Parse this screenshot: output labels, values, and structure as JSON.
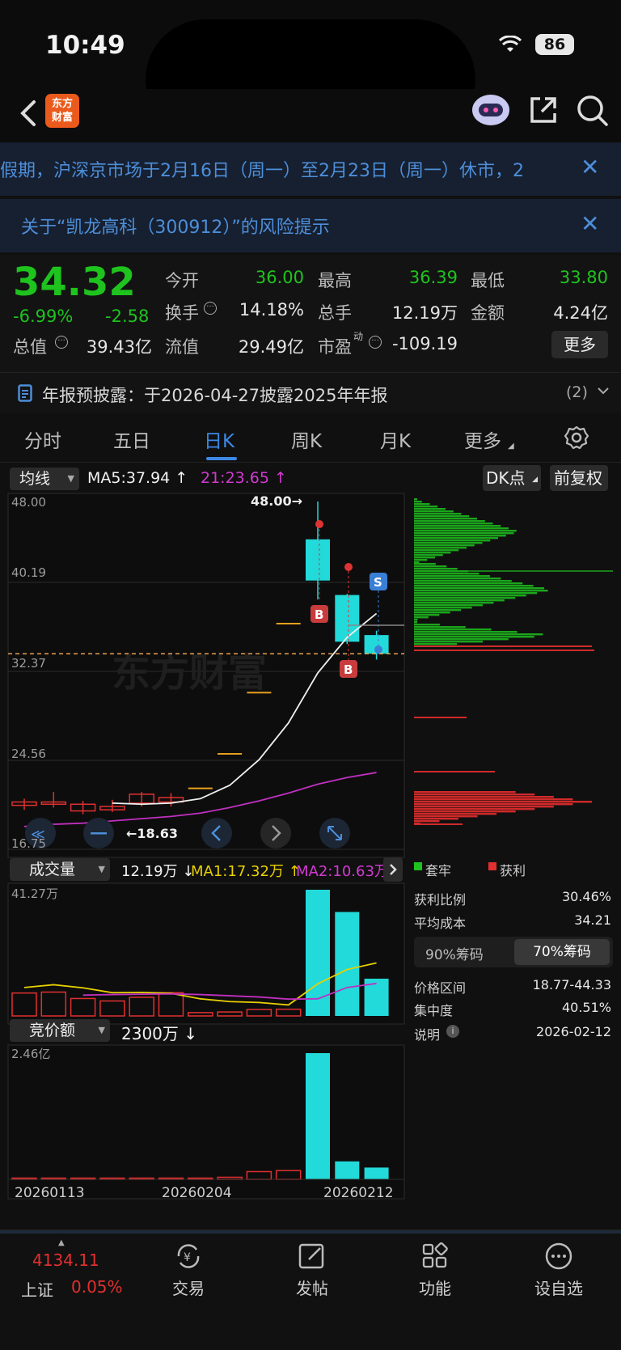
{
  "status_bar": {
    "time": "10:49",
    "battery": "86"
  },
  "header": {
    "back_icon": "chevron-left-icon",
    "logo_text": "东方\n财富"
  },
  "banners": [
    {
      "text": "假期，沪深京市场于2月16日（周一）至2月23日（周一）休市，2"
    },
    {
      "text": "关于“凯龙高科（300912）”的风险提示"
    }
  ],
  "quote": {
    "price": "34.32",
    "change_pct": "-6.99%",
    "change": "-2.58",
    "fields": {
      "open_label": "今开",
      "open": "36.00",
      "high_label": "最高",
      "high": "36.39",
      "low_label": "最低",
      "low": "33.80",
      "turnover_label": "换手",
      "turnover": "14.18%",
      "volume_label": "总手",
      "volume": "12.19万",
      "amount_label": "金额",
      "amount": "4.24亿",
      "mktcap_label": "总值",
      "mktcap": "39.43亿",
      "float_label": "流值",
      "float": "29.49亿",
      "pe_label": "市盈",
      "pe_sup": "动",
      "pe": "-109.19"
    },
    "more_label": "更多"
  },
  "report": {
    "text": "年报预披露：于2026-04-27披露2025年年报",
    "count": "(2)"
  },
  "tabs": [
    "分时",
    "五日",
    "日K",
    "周K",
    "月K",
    "更多"
  ],
  "chart_header": {
    "indicator": "均线",
    "ma5": "MA5:37.94 ↑",
    "ma21": "21:23.65 ↑",
    "dk": "DK点",
    "adjust": "前复权"
  },
  "price_axis": [
    "48.00",
    "40.19",
    "32.37",
    "24.56",
    "16.75"
  ],
  "annotations": {
    "high_marker": "48.00→",
    "low_marker": "←18.63",
    "watermark": "东方财富"
  },
  "volume_header": {
    "indicator": "成交量",
    "vol": "12.19万 ↓",
    "ma1": "MA1:17.32万 ↑",
    "ma2": "MA2:10.63万"
  },
  "volume_axis_max": "41.27万",
  "auction_header": {
    "indicator": "竞价额",
    "value": "2300万 ↓"
  },
  "auction_axis_max": "2.46亿",
  "dates": [
    "20260113",
    "20260204",
    "20260212"
  ],
  "chip_panel": {
    "legend_trapped": "套牢",
    "legend_profit": "获利",
    "rows": [
      {
        "label": "获利比例",
        "value": "30.46%"
      },
      {
        "label": "平均成本",
        "value": "34.21"
      }
    ],
    "toggle": [
      "90%筹码",
      "70%筹码"
    ],
    "rows2": [
      {
        "label": "价格区间",
        "value": "18.77-44.33"
      },
      {
        "label": "集中度",
        "value": "40.51%"
      },
      {
        "label": "说明",
        "value": "2026-02-12"
      }
    ]
  },
  "bottom_nav": {
    "index_value": "4134.11",
    "index_name": "上证",
    "index_change": "0.05%",
    "items": [
      "交易",
      "发帖",
      "功能",
      "设自选"
    ]
  },
  "chart_data": {
    "type": "candlestick",
    "ylim": [
      16.75,
      48.0
    ],
    "y_ticks": [
      48.0,
      40.19,
      32.37,
      24.56,
      16.75
    ],
    "x_ticks": [
      "20260113",
      "20260204",
      "20260212"
    ],
    "candles": [
      {
        "open": 20.7,
        "close": 21.0,
        "high": 21.3,
        "low": 20.3
      },
      {
        "open": 20.8,
        "close": 21.0,
        "high": 21.9,
        "low": 20.5
      },
      {
        "open": 20.2,
        "close": 20.8,
        "high": 21.1,
        "low": 19.9
      },
      {
        "open": 20.3,
        "close": 20.6,
        "high": 21.2,
        "low": 20.1
      },
      {
        "open": 20.9,
        "close": 21.7,
        "high": 21.9,
        "low": 20.6
      },
      {
        "open": 21.0,
        "close": 21.4,
        "high": 21.8,
        "low": 20.6
      },
      {
        "open": 22.3,
        "close": 22.3,
        "high": 22.3,
        "low": 22.3
      },
      {
        "open": 25.4,
        "close": 25.4,
        "high": 25.4,
        "low": 25.4
      },
      {
        "open": 30.9,
        "close": 30.9,
        "high": 30.9,
        "low": 30.9
      },
      {
        "open": 37.1,
        "close": 37.1,
        "high": 37.1,
        "low": 37.1
      },
      {
        "open": 44.6,
        "close": 40.9,
        "high": 48.0,
        "low": 39.2
      },
      {
        "open": 39.6,
        "close": 35.4,
        "high": 39.7,
        "low": 35.2
      },
      {
        "open": 36.0,
        "close": 34.32,
        "high": 36.39,
        "low": 33.8
      }
    ],
    "ma_white": [
      null,
      null,
      null,
      20.9,
      20.8,
      20.9,
      21.3,
      22.5,
      24.8,
      28.1,
      32.6,
      35.8,
      37.94
    ],
    "ma_magenta": [
      18.8,
      19.0,
      19.1,
      19.3,
      19.5,
      19.7,
      20.0,
      20.5,
      21.1,
      21.8,
      22.6,
      23.2,
      23.65
    ],
    "volume": [
      7.5,
      7.8,
      5.7,
      4.9,
      6.1,
      7.6,
      1.1,
      1.3,
      2.1,
      2.2,
      41.27,
      34.0,
      12.19
    ],
    "volume_ma1": [
      9.3,
      10.2,
      9.2,
      7.6,
      7.7,
      7.4,
      5.6,
      4.7,
      4.4,
      3.6,
      10.5,
      15.2,
      17.32
    ],
    "volume_ma2": [
      null,
      null,
      6.8,
      7.0,
      7.1,
      7.2,
      7.0,
      6.6,
      6.2,
      5.5,
      5.6,
      9.3,
      10.63
    ],
    "auction": [
      0.003,
      0.003,
      0.004,
      0.003,
      0.002,
      0.006,
      0.02,
      0.04,
      0.15,
      0.17,
      2.46,
      0.35,
      0.23
    ],
    "auction_unit": "亿",
    "volume_unit": "万"
  }
}
